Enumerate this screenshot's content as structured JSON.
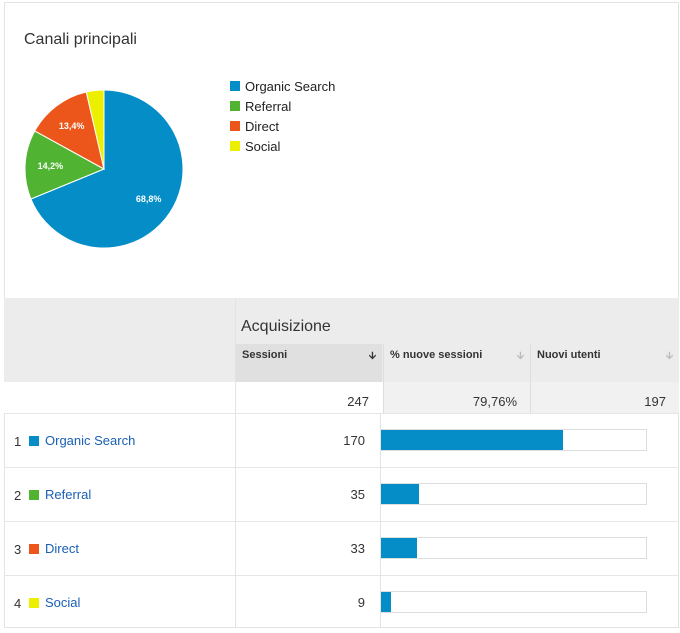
{
  "card": {
    "title": "Canali principali"
  },
  "chart_data": {
    "type": "pie",
    "slices": [
      {
        "name": "Organic Search",
        "value": 68.8,
        "label": "68,8%",
        "color": "#058dc7"
      },
      {
        "name": "Referral",
        "value": 14.2,
        "label": "14,2%",
        "color": "#50b432"
      },
      {
        "name": "Direct",
        "value": 13.4,
        "label": "13,4%",
        "color": "#ed561b"
      },
      {
        "name": "Social",
        "value": 3.6,
        "label": "",
        "color": "#edef00"
      }
    ],
    "legend_position": "right"
  },
  "legend": [
    {
      "label": "Organic Search",
      "color": "#058dc7"
    },
    {
      "label": "Referral",
      "color": "#50b432"
    },
    {
      "label": "Direct",
      "color": "#ed561b"
    },
    {
      "label": "Social",
      "color": "#edef00"
    }
  ],
  "table": {
    "group_title": "Acquisizione",
    "columns": [
      {
        "label": "Sessioni",
        "sort_icon": "arrow-down-icon"
      },
      {
        "label": "% nuove sessioni",
        "sort_icon": "arrow-down-icon"
      },
      {
        "label": "Nuovi utenti",
        "sort_icon": "arrow-down-icon"
      }
    ],
    "totals": [
      "247",
      "79,76%",
      "197"
    ],
    "rows": [
      {
        "index": "1",
        "name": "Organic Search",
        "sessions": "170",
        "share": 0.688,
        "color": "#058dc7"
      },
      {
        "index": "2",
        "name": "Referral",
        "sessions": "35",
        "share": 0.142,
        "color": "#50b432"
      },
      {
        "index": "3",
        "name": "Direct",
        "sessions": "33",
        "share": 0.134,
        "color": "#ed561b"
      },
      {
        "index": "4",
        "name": "Social",
        "sessions": "9",
        "share": 0.036,
        "color": "#edef00"
      }
    ]
  }
}
